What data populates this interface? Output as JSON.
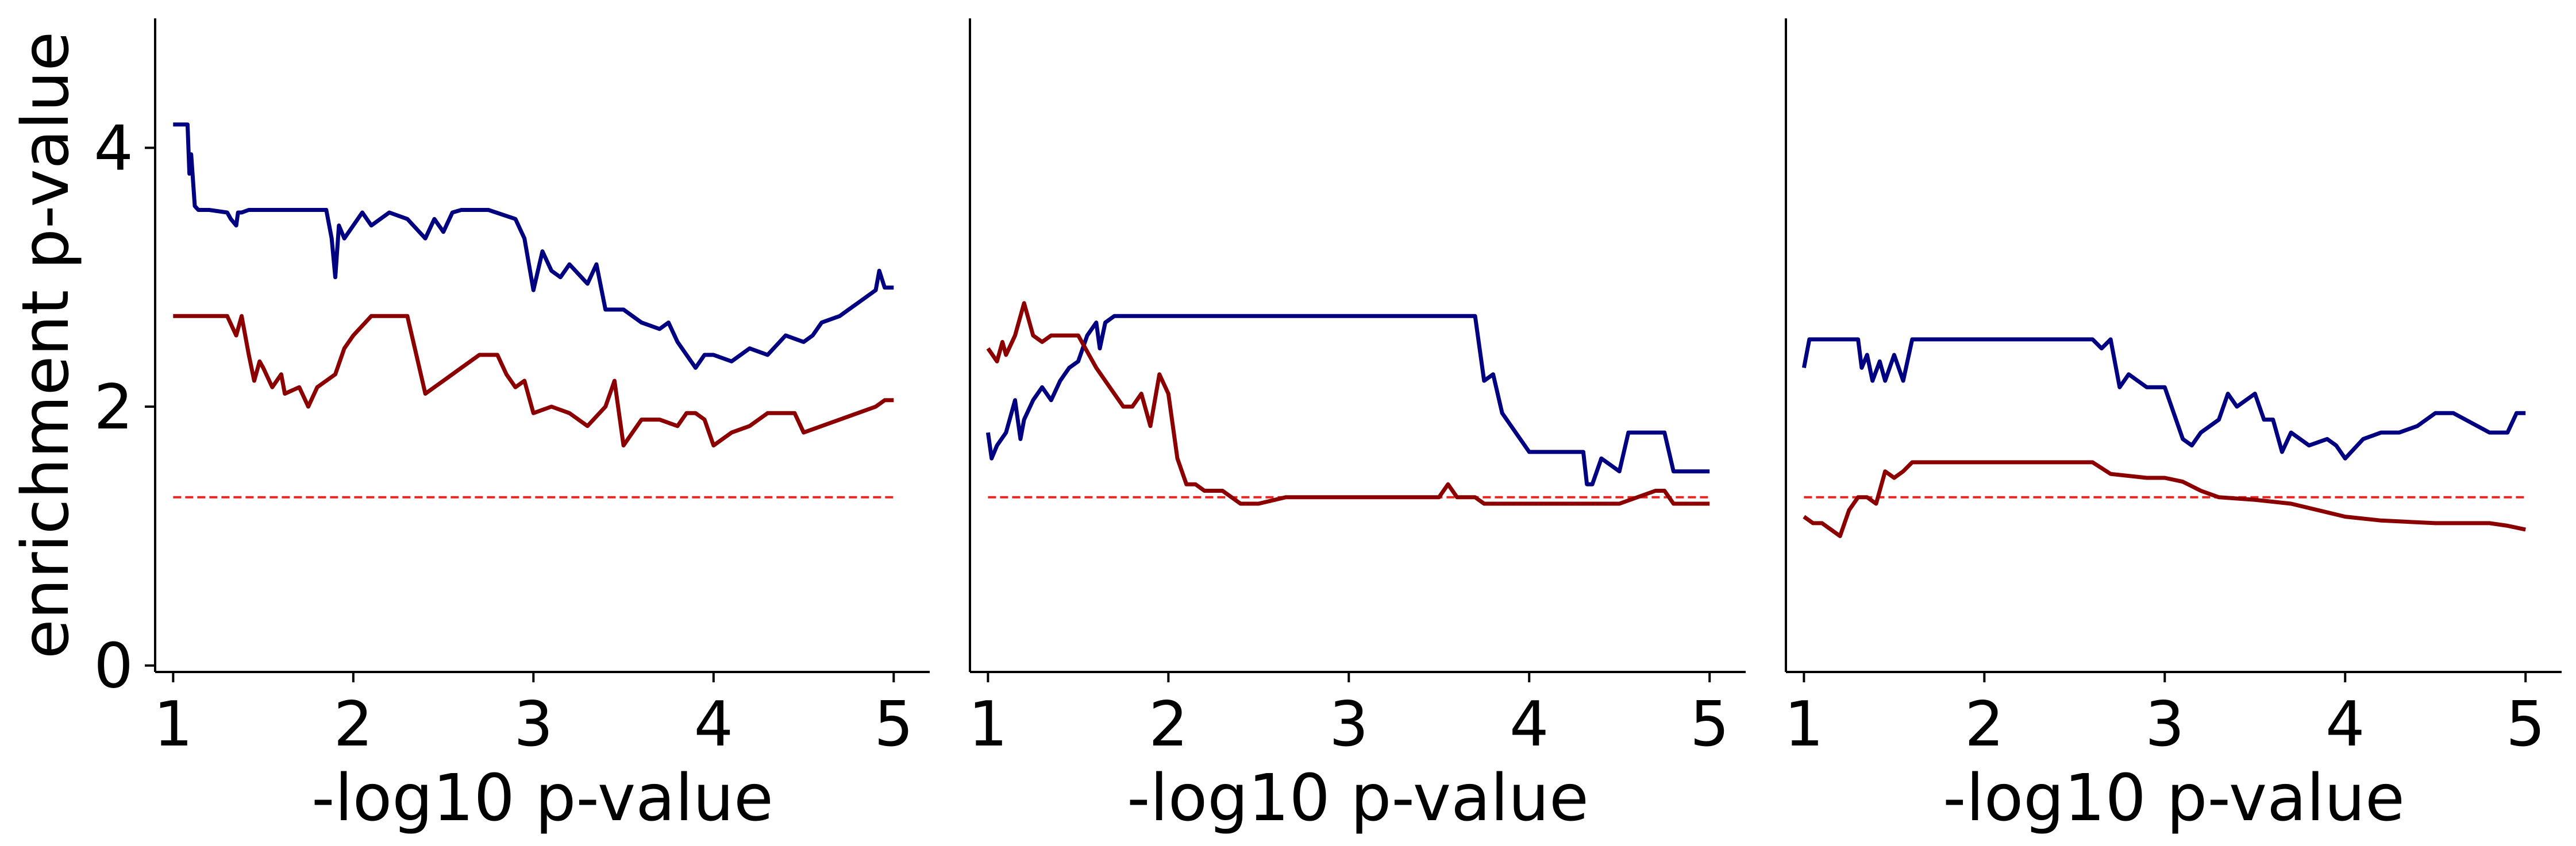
{
  "chart_data": [
    {
      "type": "line",
      "xlabel": "-log10 p-value",
      "ylabel": "enrichment p-value",
      "xlim": [
        0.9,
        5.2
      ],
      "ylim": [
        -0.05,
        5.0
      ],
      "xticks": [
        1,
        2,
        3,
        4,
        5
      ],
      "yticks": [
        0,
        2,
        4
      ],
      "threshold": 1.3,
      "series": [
        {
          "color": "#000080",
          "x": [
            1.0,
            1.08,
            1.09,
            1.1,
            1.12,
            1.14,
            1.16,
            1.2,
            1.3,
            1.32,
            1.35,
            1.36,
            1.38,
            1.42,
            1.48,
            1.5,
            1.6,
            1.7,
            1.85,
            1.88,
            1.9,
            1.92,
            1.95,
            2.05,
            2.1,
            2.2,
            2.3,
            2.4,
            2.45,
            2.5,
            2.55,
            2.6,
            2.75,
            2.9,
            2.95,
            3.0,
            3.05,
            3.1,
            3.15,
            3.2,
            3.3,
            3.35,
            3.4,
            3.5,
            3.6,
            3.7,
            3.75,
            3.8,
            3.9,
            3.95,
            4.0,
            4.1,
            4.2,
            4.3,
            4.4,
            4.5,
            4.55,
            4.6,
            4.7,
            4.75,
            4.8,
            4.9,
            4.92,
            4.95,
            5.0
          ],
          "y": [
            4.18,
            4.18,
            3.8,
            3.95,
            3.55,
            3.52,
            3.52,
            3.52,
            3.5,
            3.45,
            3.4,
            3.5,
            3.5,
            3.52,
            3.52,
            3.52,
            3.52,
            3.52,
            3.52,
            3.3,
            3.0,
            3.4,
            3.3,
            3.5,
            3.4,
            3.5,
            3.45,
            3.3,
            3.45,
            3.35,
            3.5,
            3.52,
            3.52,
            3.45,
            3.3,
            2.9,
            3.2,
            3.05,
            3.0,
            3.1,
            2.95,
            3.1,
            2.75,
            2.75,
            2.65,
            2.6,
            2.65,
            2.5,
            2.3,
            2.4,
            2.4,
            2.35,
            2.45,
            2.4,
            2.55,
            2.5,
            2.55,
            2.65,
            2.7,
            2.75,
            2.8,
            2.9,
            3.05,
            2.92,
            2.92
          ]
        },
        {
          "color": "#8b0000",
          "x": [
            1.0,
            1.1,
            1.2,
            1.3,
            1.35,
            1.38,
            1.42,
            1.45,
            1.48,
            1.5,
            1.55,
            1.6,
            1.62,
            1.7,
            1.75,
            1.8,
            1.9,
            1.95,
            2.0,
            2.1,
            2.2,
            2.3,
            2.35,
            2.4,
            2.45,
            2.5,
            2.6,
            2.7,
            2.8,
            2.85,
            2.9,
            2.95,
            3.0,
            3.1,
            3.2,
            3.3,
            3.4,
            3.45,
            3.5,
            3.55,
            3.6,
            3.7,
            3.8,
            3.85,
            3.9,
            3.95,
            4.0,
            4.1,
            4.2,
            4.3,
            4.4,
            4.45,
            4.5,
            4.6,
            4.7,
            4.8,
            4.9,
            4.95,
            5.0
          ],
          "y": [
            2.7,
            2.7,
            2.7,
            2.7,
            2.55,
            2.7,
            2.4,
            2.2,
            2.35,
            2.3,
            2.15,
            2.25,
            2.1,
            2.15,
            2.0,
            2.15,
            2.25,
            2.45,
            2.55,
            2.7,
            2.7,
            2.7,
            2.4,
            2.1,
            2.15,
            2.2,
            2.3,
            2.4,
            2.4,
            2.25,
            2.15,
            2.2,
            1.95,
            2.0,
            1.95,
            1.85,
            2.0,
            2.2,
            1.7,
            1.8,
            1.9,
            1.9,
            1.85,
            1.95,
            1.95,
            1.9,
            1.7,
            1.8,
            1.85,
            1.95,
            1.95,
            1.95,
            1.8,
            1.85,
            1.9,
            1.95,
            2.0,
            2.05,
            2.05
          ]
        }
      ]
    },
    {
      "type": "line",
      "xlabel": "-log10 p-value",
      "xlim": [
        0.9,
        5.2
      ],
      "ylim": [
        -0.05,
        5.0
      ],
      "xticks": [
        1,
        2,
        3,
        4,
        5
      ],
      "threshold": 1.3,
      "series": [
        {
          "color": "#000080",
          "x": [
            1.0,
            1.02,
            1.05,
            1.1,
            1.15,
            1.18,
            1.2,
            1.25,
            1.3,
            1.35,
            1.4,
            1.45,
            1.5,
            1.55,
            1.6,
            1.62,
            1.65,
            1.7,
            2.0,
            2.5,
            3.0,
            3.5,
            3.6,
            3.7,
            3.75,
            3.8,
            3.85,
            4.0,
            4.3,
            4.32,
            4.35,
            4.4,
            4.5,
            4.55,
            4.6,
            4.75,
            4.8,
            5.0
          ],
          "y": [
            1.8,
            1.6,
            1.7,
            1.8,
            2.05,
            1.75,
            1.9,
            2.05,
            2.15,
            2.05,
            2.2,
            2.3,
            2.35,
            2.55,
            2.65,
            2.45,
            2.65,
            2.7,
            2.7,
            2.7,
            2.7,
            2.7,
            2.7,
            2.7,
            2.2,
            2.25,
            1.95,
            1.65,
            1.65,
            1.4,
            1.4,
            1.6,
            1.5,
            1.8,
            1.8,
            1.8,
            1.5,
            1.5
          ]
        },
        {
          "color": "#8b0000",
          "x": [
            1.0,
            1.05,
            1.08,
            1.1,
            1.15,
            1.2,
            1.25,
            1.3,
            1.35,
            1.4,
            1.5,
            1.6,
            1.65,
            1.7,
            1.75,
            1.8,
            1.85,
            1.9,
            1.95,
            2.0,
            2.05,
            2.1,
            2.15,
            2.2,
            2.3,
            2.4,
            2.5,
            2.65,
            3.0,
            3.2,
            3.5,
            3.55,
            3.6,
            3.7,
            3.75,
            3.8,
            3.9,
            4.0,
            4.2,
            4.5,
            4.7,
            4.75,
            4.8,
            5.0
          ],
          "y": [
            2.45,
            2.35,
            2.5,
            2.4,
            2.55,
            2.8,
            2.55,
            2.5,
            2.55,
            2.55,
            2.55,
            2.3,
            2.2,
            2.1,
            2.0,
            2.0,
            2.1,
            1.85,
            2.25,
            2.1,
            1.6,
            1.4,
            1.4,
            1.35,
            1.35,
            1.25,
            1.25,
            1.3,
            1.3,
            1.3,
            1.3,
            1.4,
            1.3,
            1.3,
            1.25,
            1.25,
            1.25,
            1.25,
            1.25,
            1.25,
            1.35,
            1.35,
            1.25,
            1.25
          ]
        }
      ]
    },
    {
      "type": "line",
      "xlabel": "-log10 p-value",
      "xlim": [
        0.9,
        5.2
      ],
      "ylim": [
        -0.05,
        5.0
      ],
      "xticks": [
        1,
        2,
        3,
        4,
        5
      ],
      "threshold": 1.3,
      "series": [
        {
          "color": "#000080",
          "x": [
            1.0,
            1.03,
            1.05,
            1.3,
            1.32,
            1.35,
            1.38,
            1.42,
            1.45,
            1.5,
            1.55,
            1.6,
            2.0,
            2.6,
            2.65,
            2.7,
            2.75,
            2.8,
            2.9,
            3.0,
            3.1,
            3.15,
            3.2,
            3.3,
            3.35,
            3.4,
            3.5,
            3.55,
            3.6,
            3.65,
            3.7,
            3.8,
            3.9,
            3.95,
            4.0,
            4.1,
            4.2,
            4.3,
            4.4,
            4.5,
            4.6,
            4.8,
            4.9,
            4.95,
            5.0
          ],
          "y": [
            2.3,
            2.52,
            2.52,
            2.52,
            2.3,
            2.4,
            2.2,
            2.35,
            2.2,
            2.4,
            2.2,
            2.52,
            2.52,
            2.52,
            2.45,
            2.52,
            2.15,
            2.25,
            2.15,
            2.15,
            1.75,
            1.7,
            1.8,
            1.9,
            2.1,
            2.0,
            2.1,
            1.9,
            1.9,
            1.65,
            1.8,
            1.7,
            1.75,
            1.7,
            1.6,
            1.75,
            1.8,
            1.8,
            1.85,
            1.95,
            1.95,
            1.8,
            1.8,
            1.95,
            1.95
          ]
        },
        {
          "color": "#8b0000",
          "x": [
            1.0,
            1.05,
            1.1,
            1.15,
            1.2,
            1.25,
            1.3,
            1.35,
            1.4,
            1.45,
            1.5,
            1.55,
            1.6,
            1.8,
            2.0,
            2.2,
            2.5,
            2.6,
            2.7,
            2.9,
            3.0,
            3.1,
            3.2,
            3.3,
            3.5,
            3.7,
            4.0,
            4.2,
            4.5,
            4.8,
            4.9,
            5.0
          ],
          "y": [
            1.15,
            1.1,
            1.1,
            1.05,
            1.0,
            1.2,
            1.3,
            1.3,
            1.25,
            1.5,
            1.45,
            1.5,
            1.57,
            1.57,
            1.57,
            1.57,
            1.57,
            1.57,
            1.48,
            1.45,
            1.45,
            1.42,
            1.35,
            1.3,
            1.28,
            1.25,
            1.15,
            1.12,
            1.1,
            1.1,
            1.08,
            1.05
          ]
        }
      ]
    }
  ]
}
